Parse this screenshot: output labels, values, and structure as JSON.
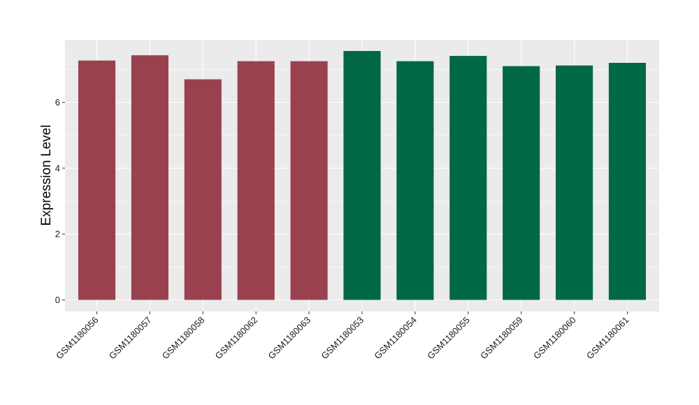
{
  "chart_data": {
    "type": "bar",
    "title": "",
    "xlabel": "",
    "ylabel": "Expression Level",
    "ylim": [
      -0.35,
      7.9
    ],
    "yticks": [
      0,
      2,
      4,
      6
    ],
    "categories": [
      "GSM1180056",
      "GSM1180057",
      "GSM1180058",
      "GSM1180062",
      "GSM1180063",
      "GSM1180053",
      "GSM1180054",
      "GSM1180055",
      "GSM1180059",
      "GSM1180060",
      "GSM1180061"
    ],
    "values": [
      7.27,
      7.43,
      6.7,
      7.25,
      7.25,
      7.56,
      7.25,
      7.41,
      7.1,
      7.12,
      7.2
    ],
    "bar_colors": [
      "#99414f",
      "#99414f",
      "#99414f",
      "#99414f",
      "#99414f",
      "#006747",
      "#006747",
      "#006747",
      "#006747",
      "#006747",
      "#006747"
    ],
    "panel_background": "#ebebeb",
    "gridline_color": "#ffffff",
    "grid": true,
    "legend": "none"
  }
}
